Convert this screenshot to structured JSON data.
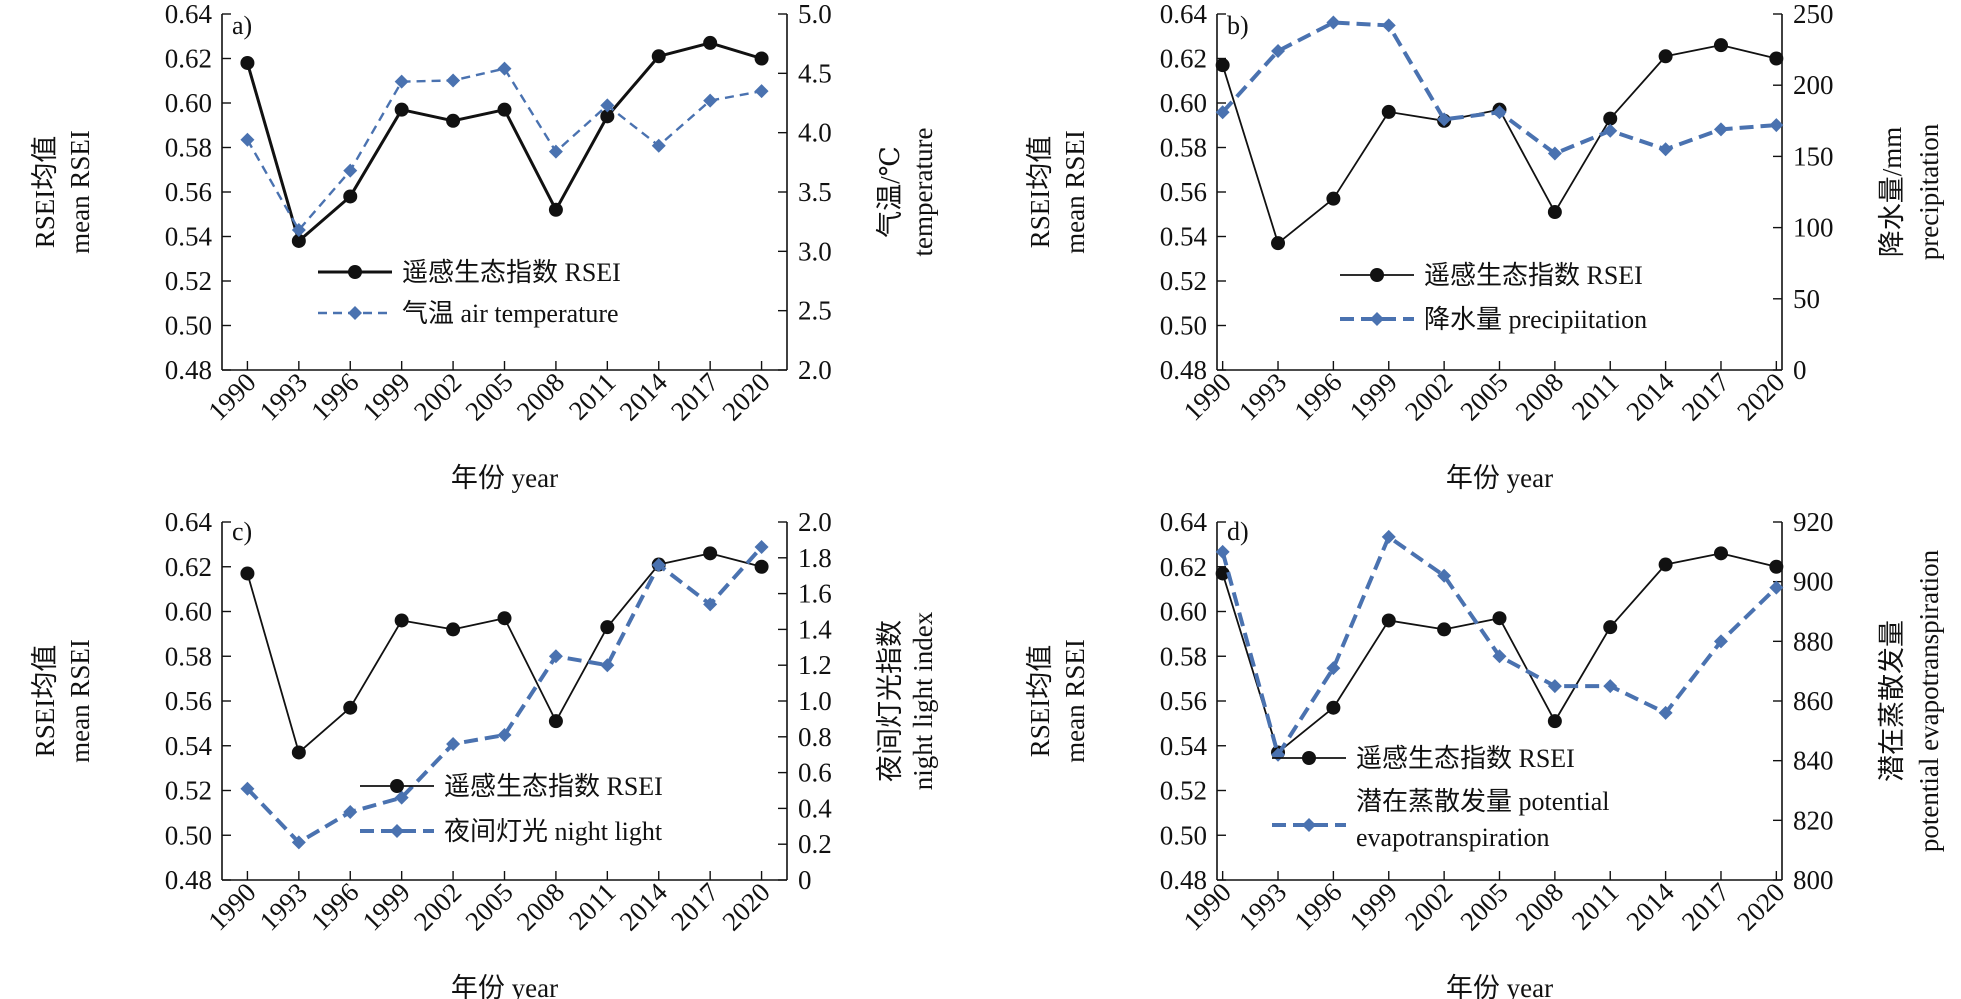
{
  "colors": {
    "rsei": "#111111",
    "factor": "#4a72b0",
    "axis": "#111111"
  },
  "chart_data": [
    {
      "type": "line",
      "panel_label": "a)",
      "x": [
        "1990",
        "1993",
        "1996",
        "1999",
        "2002",
        "2005",
        "2008",
        "2011",
        "2014",
        "2017",
        "2020"
      ],
      "xlabel": "年份 year",
      "ylabel_left": [
        "RSEI均值",
        "mean RSEI"
      ],
      "ylabel_right": [
        "气温/℃",
        "temperature"
      ],
      "y_left": {
        "lim": [
          0.48,
          0.64
        ],
        "ticks": [
          "0.48",
          "0.50",
          "0.52",
          "0.54",
          "0.56",
          "0.58",
          "0.60",
          "0.62",
          "0.64"
        ]
      },
      "y_right": {
        "lim": [
          2.0,
          5.0
        ],
        "ticks": [
          "2.0",
          "2.5",
          "3.0",
          "3.5",
          "4.0",
          "4.5",
          "5.0"
        ]
      },
      "series": [
        {
          "name": "遥感生态指数 RSEI",
          "axis": "left",
          "style": "solid-circle",
          "values": [
            0.618,
            0.538,
            0.558,
            0.597,
            0.592,
            0.597,
            0.552,
            0.594,
            0.621,
            0.627,
            0.62
          ]
        },
        {
          "name": "气温 air temperature",
          "axis": "right",
          "style": "dashed-diamond",
          "values": [
            3.94,
            3.18,
            3.68,
            4.43,
            4.44,
            4.54,
            3.84,
            4.23,
            3.89,
            4.27,
            4.35
          ]
        }
      ],
      "legend_lines": [
        "遥感生态指数 RSEI",
        "气温 air temperature"
      ]
    },
    {
      "type": "line",
      "panel_label": "b)",
      "x": [
        "1990",
        "1993",
        "1996",
        "1999",
        "2002",
        "2005",
        "2008",
        "2011",
        "2014",
        "2017",
        "2020"
      ],
      "xlabel": "年份 year",
      "ylabel_left": [
        "RSEI均值",
        "mean RSEI"
      ],
      "ylabel_right": [
        "降水量/mm",
        "precipitation"
      ],
      "y_left": {
        "lim": [
          0.48,
          0.64
        ],
        "ticks": [
          "0.48",
          "0.50",
          "0.52",
          "0.54",
          "0.56",
          "0.58",
          "0.60",
          "0.62",
          "0.64"
        ]
      },
      "y_right": {
        "lim": [
          0,
          250
        ],
        "ticks": [
          "0",
          "50",
          "100",
          "150",
          "200",
          "250"
        ]
      },
      "series": [
        {
          "name": "遥感生态指数 RSEI",
          "axis": "left",
          "style": "thin-circle",
          "values": [
            0.617,
            0.537,
            0.557,
            0.596,
            0.592,
            0.597,
            0.551,
            0.593,
            0.621,
            0.626,
            0.62
          ]
        },
        {
          "name": "降水量 precipiitation",
          "axis": "right",
          "style": "thick-dashed-diamond",
          "values": [
            181,
            224,
            244,
            242,
            176,
            181,
            152,
            168,
            155,
            169,
            172
          ]
        }
      ],
      "legend_lines": [
        "遥感生态指数 RSEI",
        "降水量 precipiitation"
      ]
    },
    {
      "type": "line",
      "panel_label": "c)",
      "x": [
        "1990",
        "1993",
        "1996",
        "1999",
        "2002",
        "2005",
        "2008",
        "2011",
        "2014",
        "2017",
        "2020"
      ],
      "xlabel": "年份 year",
      "ylabel_left": [
        "RSEI均值",
        "mean RSEI"
      ],
      "ylabel_right": [
        "夜间灯光指数",
        "night light index"
      ],
      "y_left": {
        "lim": [
          0.48,
          0.64
        ],
        "ticks": [
          "0.48",
          "0.50",
          "0.52",
          "0.54",
          "0.56",
          "0.58",
          "0.60",
          "0.62",
          "0.64"
        ]
      },
      "y_right": {
        "lim": [
          0,
          2.0
        ],
        "ticks": [
          "0",
          "0.2",
          "0.4",
          "0.6",
          "0.8",
          "1.0",
          "1.2",
          "1.4",
          "1.6",
          "1.8",
          "2.0"
        ]
      },
      "series": [
        {
          "name": "遥感生态指数 RSEI",
          "axis": "left",
          "style": "thin-circle",
          "values": [
            0.617,
            0.537,
            0.557,
            0.596,
            0.592,
            0.597,
            0.551,
            0.593,
            0.621,
            0.626,
            0.62
          ]
        },
        {
          "name": "夜间灯光 night light",
          "axis": "right",
          "style": "thick-dashed-diamond",
          "values": [
            0.51,
            0.21,
            0.38,
            0.46,
            0.76,
            0.81,
            1.25,
            1.2,
            1.76,
            1.54,
            1.86
          ]
        }
      ],
      "legend_lines": [
        "遥感生态指数 RSEI",
        "夜间灯光 night light"
      ]
    },
    {
      "type": "line",
      "panel_label": "d)",
      "x": [
        "1990",
        "1993",
        "1996",
        "1999",
        "2002",
        "2005",
        "2008",
        "2011",
        "2014",
        "2017",
        "2020"
      ],
      "xlabel": "年份 year",
      "ylabel_left": [
        "RSEI均值",
        "mean RSEI"
      ],
      "ylabel_right": [
        "潜在蒸散发量",
        "potential evapotranspiration"
      ],
      "y_left": {
        "lim": [
          0.48,
          0.64
        ],
        "ticks": [
          "0.48",
          "0.50",
          "0.52",
          "0.54",
          "0.56",
          "0.58",
          "0.60",
          "0.62",
          "0.64"
        ]
      },
      "y_right": {
        "lim": [
          800,
          920
        ],
        "ticks": [
          "800",
          "820",
          "840",
          "860",
          "880",
          "900",
          "920"
        ]
      },
      "series": [
        {
          "name": "遥感生态指数 RSEI",
          "axis": "left",
          "style": "thin-circle",
          "values": [
            0.617,
            0.537,
            0.557,
            0.596,
            0.592,
            0.597,
            0.551,
            0.593,
            0.621,
            0.626,
            0.62
          ]
        },
        {
          "name": "潜在蒸散发量 potential evapotranspiration",
          "axis": "right",
          "style": "thick-dashed-diamond",
          "values": [
            910,
            842,
            871,
            915,
            902,
            875,
            865,
            865,
            856,
            880,
            898
          ]
        }
      ],
      "legend_lines": [
        "遥感生态指数 RSEI",
        "潜在蒸散发量 potential",
        "evapotranspiration"
      ]
    }
  ]
}
